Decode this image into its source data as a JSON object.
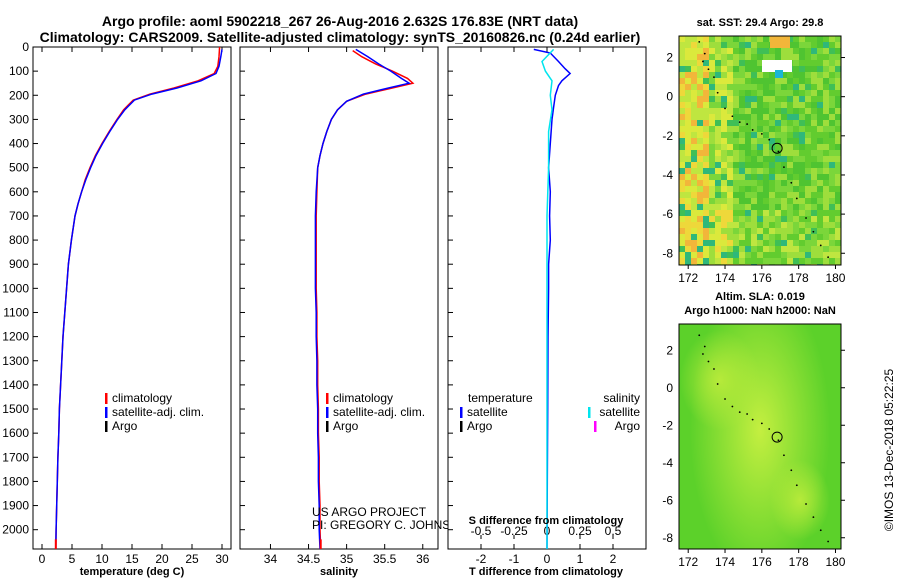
{
  "header": {
    "title_line1": "Argo profile: aoml 5902218_267 26-Aug-2016 2.632S 176.83E (NRT data)",
    "title_line2": "Climatology: CARS2009. Satellite-adjusted climatology: synTS_20160826.nc (0.24d earlier)"
  },
  "colors": {
    "climatology": "#ff0000",
    "satellite": "#0000ff",
    "argo": "#000000",
    "salinity_satellite": "#00e5ee",
    "salinity_argo": "#ff00ff"
  },
  "depth_axis": {
    "min": 0,
    "max": 2080,
    "ticks": [
      "0",
      "100",
      "200",
      "300",
      "400",
      "500",
      "600",
      "700",
      "800",
      "900",
      "1000",
      "1100",
      "1200",
      "1300",
      "1400",
      "1500",
      "1600",
      "1700",
      "1800",
      "1900",
      "2000"
    ]
  },
  "chart_data": [
    {
      "type": "line",
      "name": "temperature-profile",
      "xlabel": "temperature (deg C)",
      "xlim": [
        -1.5,
        31.5
      ],
      "xticks": [
        "0",
        "5",
        "10",
        "15",
        "20",
        "25",
        "30"
      ],
      "legend": [
        "climatology",
        "satellite-adj. clim.",
        "Argo"
      ],
      "legend_placement": "lower-center",
      "series": [
        {
          "name": "climatology",
          "color": "#ff0000",
          "points": [
            [
              29.6,
              0
            ],
            [
              29.5,
              40
            ],
            [
              29.3,
              80
            ],
            [
              28.7,
              110
            ],
            [
              26,
              140
            ],
            [
              22,
              170
            ],
            [
              18,
              195
            ],
            [
              15.2,
              220
            ],
            [
              13.6,
              260
            ],
            [
              12.5,
              300
            ],
            [
              11.2,
              350
            ],
            [
              10,
              400
            ],
            [
              8.9,
              450
            ],
            [
              8,
              500
            ],
            [
              7.2,
              550
            ],
            [
              6.6,
              600
            ],
            [
              6,
              650
            ],
            [
              5.5,
              700
            ],
            [
              4.9,
              800
            ],
            [
              4.4,
              900
            ],
            [
              4.1,
              1000
            ],
            [
              3.8,
              1100
            ],
            [
              3.5,
              1200
            ],
            [
              3.3,
              1300
            ],
            [
              3.1,
              1400
            ],
            [
              2.9,
              1500
            ],
            [
              2.8,
              1600
            ],
            [
              2.65,
              1700
            ],
            [
              2.55,
              1800
            ],
            [
              2.45,
              1900
            ],
            [
              2.35,
              2000
            ],
            [
              2.3,
              2080
            ]
          ]
        },
        {
          "name": "satellite-adj. clim.",
          "color": "#0000ff",
          "points": [
            [
              30,
              10
            ],
            [
              29.8,
              40
            ],
            [
              29.5,
              80
            ],
            [
              29,
              110
            ],
            [
              26.5,
              140
            ],
            [
              22.5,
              170
            ],
            [
              18.3,
              195
            ],
            [
              15.4,
              220
            ],
            [
              13.8,
              260
            ],
            [
              12.6,
              300
            ],
            [
              11.3,
              350
            ],
            [
              10.1,
              400
            ],
            [
              9,
              450
            ],
            [
              8.1,
              500
            ],
            [
              7.3,
              550
            ],
            [
              6.6,
              600
            ],
            [
              6,
              650
            ],
            [
              5.5,
              700
            ],
            [
              4.9,
              800
            ],
            [
              4.4,
              900
            ],
            [
              4.1,
              1000
            ],
            [
              3.8,
              1100
            ],
            [
              3.5,
              1200
            ],
            [
              3.3,
              1300
            ],
            [
              3.1,
              1400
            ],
            [
              2.9,
              1500
            ],
            [
              2.8,
              1600
            ],
            [
              2.65,
              1700
            ],
            [
              2.55,
              1800
            ],
            [
              2.45,
              1900
            ],
            [
              2.35,
              2000
            ],
            [
              2.3,
              2080
            ]
          ]
        }
      ]
    },
    {
      "type": "line",
      "name": "salinity-profile",
      "xlabel": "salinity",
      "xlim": [
        33.6,
        36.2
      ],
      "xticks": [
        "34",
        "34.5",
        "35",
        "35.5",
        "36"
      ],
      "legend": [
        "climatology",
        "satellite-adj. clim.",
        "Argo"
      ],
      "legend_placement": "lower-center",
      "credit_line1": "US ARGO PROJECT",
      "credit_line2": "PI: GREGORY C. JOHNSON",
      "series": [
        {
          "name": "climatology",
          "color": "#ff0000",
          "points": [
            [
              35.08,
              15
            ],
            [
              35.2,
              40
            ],
            [
              35.38,
              70
            ],
            [
              35.6,
              100
            ],
            [
              35.8,
              130
            ],
            [
              35.87,
              150
            ],
            [
              35.6,
              170
            ],
            [
              35.25,
              195
            ],
            [
              35,
              225
            ],
            [
              34.88,
              260
            ],
            [
              34.8,
              300
            ],
            [
              34.74,
              350
            ],
            [
              34.69,
              400
            ],
            [
              34.65,
              450
            ],
            [
              34.62,
              500
            ],
            [
              34.61,
              600
            ],
            [
              34.6,
              700
            ],
            [
              34.6,
              800
            ],
            [
              34.6,
              900
            ],
            [
              34.6,
              1000
            ],
            [
              34.61,
              1100
            ],
            [
              34.61,
              1200
            ],
            [
              34.62,
              1300
            ],
            [
              34.62,
              1400
            ],
            [
              34.63,
              1500
            ],
            [
              34.63,
              1600
            ],
            [
              34.64,
              1700
            ],
            [
              34.64,
              1800
            ],
            [
              34.65,
              1900
            ],
            [
              34.65,
              2000
            ],
            [
              34.66,
              2080
            ]
          ]
        },
        {
          "name": "satellite-adj. clim.",
          "color": "#0000ff",
          "points": [
            [
              35.12,
              10
            ],
            [
              35.28,
              40
            ],
            [
              35.42,
              70
            ],
            [
              35.58,
              100
            ],
            [
              35.72,
              130
            ],
            [
              35.82,
              150
            ],
            [
              35.55,
              170
            ],
            [
              35.22,
              195
            ],
            [
              35,
              225
            ],
            [
              34.88,
              260
            ],
            [
              34.8,
              300
            ],
            [
              34.74,
              350
            ],
            [
              34.69,
              400
            ],
            [
              34.65,
              450
            ],
            [
              34.62,
              500
            ],
            [
              34.6,
              600
            ],
            [
              34.59,
              700
            ],
            [
              34.59,
              800
            ],
            [
              34.59,
              900
            ],
            [
              34.59,
              1000
            ],
            [
              34.6,
              1100
            ],
            [
              34.6,
              1200
            ],
            [
              34.61,
              1300
            ],
            [
              34.61,
              1400
            ],
            [
              34.62,
              1500
            ],
            [
              34.62,
              1600
            ],
            [
              34.63,
              1700
            ],
            [
              34.63,
              1800
            ],
            [
              34.64,
              1900
            ],
            [
              34.64,
              2000
            ],
            [
              34.65,
              2080
            ]
          ]
        }
      ]
    },
    {
      "type": "line",
      "name": "difference-profile",
      "xlabel": "T difference from climatology",
      "xlabel_top": "S difference from climatology",
      "xlim": [
        -3,
        3
      ],
      "xticks": [
        "-2",
        "-1",
        "0",
        "1",
        "2"
      ],
      "xticks_top": [
        "-0.5",
        "-0.25",
        "0",
        "0.25",
        "0.5"
      ],
      "legend_left_title": "temperature",
      "legend_left": [
        "satellite",
        "Argo"
      ],
      "legend_right_title": "salinity",
      "legend_right": [
        "satellite",
        "Argo"
      ],
      "legend_placement": "lower-center",
      "series": [
        {
          "name": "temperature satellite",
          "color": "#0000ff",
          "points": [
            [
              -0.4,
              10
            ],
            [
              0.1,
              25
            ],
            [
              0.35,
              60
            ],
            [
              0.55,
              90
            ],
            [
              0.7,
              110
            ],
            [
              0.45,
              140
            ],
            [
              0.35,
              160
            ],
            [
              0.25,
              200
            ],
            [
              0.2,
              250
            ],
            [
              0.15,
              300
            ],
            [
              0.1,
              400
            ],
            [
              0.05,
              500
            ],
            [
              0.1,
              600
            ],
            [
              0.08,
              700
            ],
            [
              0.1,
              800
            ],
            [
              0.05,
              900
            ],
            [
              0.05,
              1000
            ],
            [
              0.03,
              1200
            ],
            [
              0.02,
              1500
            ],
            [
              0.01,
              1800
            ],
            [
              0,
              2080
            ]
          ]
        },
        {
          "name": "salinity satellite",
          "color": "#00e5ee",
          "points": [
            [
              0.2,
              10
            ],
            [
              -0.15,
              60
            ],
            [
              -0.05,
              100
            ],
            [
              0.15,
              140
            ],
            [
              0.1,
              200
            ],
            [
              0.15,
              260
            ],
            [
              0.05,
              350
            ],
            [
              0.05,
              500
            ],
            [
              0,
              700
            ],
            [
              0,
              1000
            ],
            [
              0,
              1500
            ],
            [
              0,
              2080
            ]
          ]
        }
      ]
    },
    {
      "type": "heatmap",
      "name": "sst-map",
      "title": "sat. SST: 29.4 Argo: 29.8",
      "xlim": [
        171.5,
        180.3
      ],
      "ylim": [
        -8.6,
        3.1
      ],
      "xticks": [
        "172",
        "174",
        "176",
        "178",
        "180"
      ],
      "yticks": [
        "2",
        "0",
        "-2",
        "-4",
        "-6",
        "-8"
      ],
      "float_lon": 176.83,
      "float_lat": -2.632
    },
    {
      "type": "heatmap",
      "name": "sla-map",
      "title_line1": "Altim. SLA: 0.019",
      "title_line2": "Argo h1000: NaN h2000: NaN",
      "xlim": [
        171.5,
        180.3
      ],
      "ylim": [
        -8.6,
        3.4
      ],
      "xticks": [
        "172",
        "174",
        "176",
        "178",
        "180"
      ],
      "yticks": [
        "2",
        "0",
        "-2",
        "-4",
        "-6",
        "-8"
      ],
      "float_lon": 176.83,
      "float_lat": -2.632
    }
  ],
  "footer": {
    "stamp": "©IMOS 13-Dec-2018 05:22:25"
  }
}
